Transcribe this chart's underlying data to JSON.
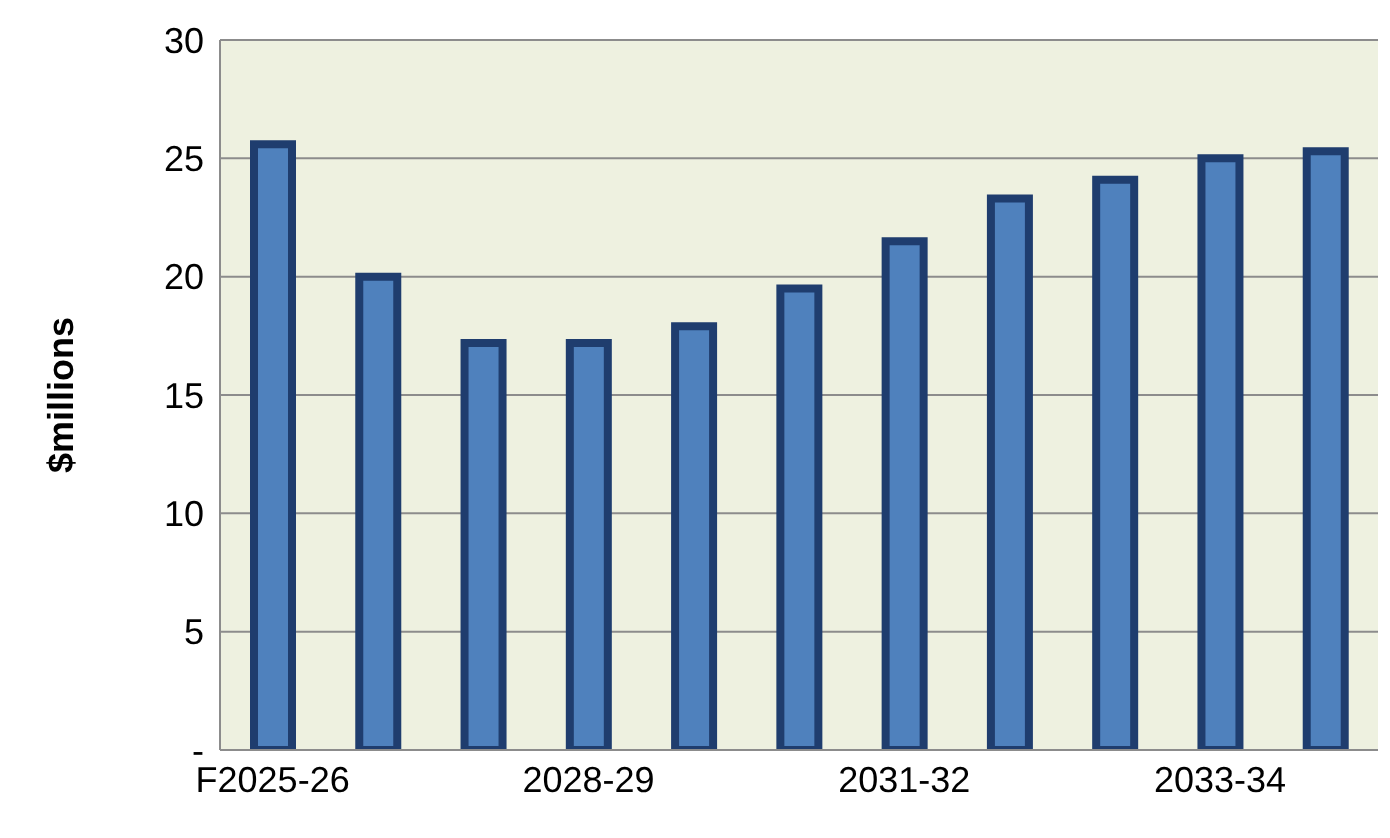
{
  "chart_data": {
    "type": "bar",
    "ylabel": "$millions",
    "categories": [
      "F2025-26",
      null,
      null,
      "2028-29",
      null,
      null,
      "2031-32",
      null,
      null,
      "2033-34",
      null
    ],
    "values": [
      25.6,
      20.0,
      17.2,
      17.2,
      17.9,
      19.5,
      21.5,
      23.3,
      24.1,
      25.0,
      25.3
    ],
    "color": "#4f81bd",
    "ylim": [
      0,
      30
    ],
    "yticks": [
      {
        "value": 0,
        "label": "-"
      },
      5,
      10,
      15,
      20,
      25,
      30
    ],
    "grid": "y"
  }
}
